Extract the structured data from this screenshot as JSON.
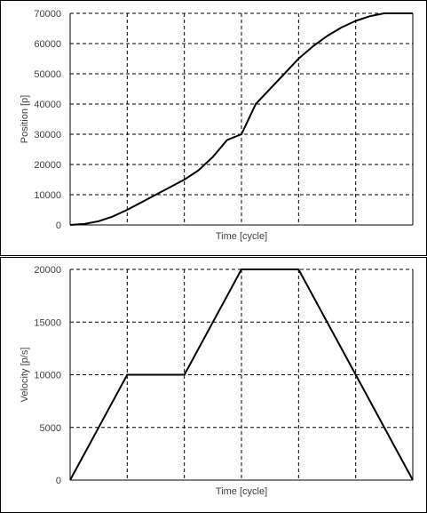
{
  "chart_data": [
    {
      "type": "line",
      "title": "",
      "xlabel": "Time [cycle]",
      "ylabel": "Position [p]",
      "ylim": [
        0,
        70000
      ],
      "yticks": [
        "0",
        "10000",
        "20000",
        "30000",
        "40000",
        "50000",
        "60000",
        "70000"
      ],
      "xlim": [
        0,
        6
      ],
      "grid": true,
      "series": [
        {
          "x": [
            0,
            0.25,
            0.5,
            0.75,
            1,
            1.25,
            1.5,
            1.75,
            2,
            2.25,
            2.5,
            2.75,
            3,
            3.25,
            3.5,
            3.75,
            4,
            4.25,
            4.5,
            4.75,
            5,
            5.25,
            5.5,
            5.75,
            6
          ],
          "y": [
            0,
            312,
            1250,
            2812,
            5000,
            7500,
            10000,
            12500,
            15000,
            18125,
            22500,
            28125,
            30000,
            40000,
            45000,
            50000,
            55000,
            59062,
            62500,
            65312,
            67500,
            69062,
            70000,
            70000,
            70000
          ]
        }
      ]
    },
    {
      "type": "line",
      "title": "",
      "xlabel": "Time [cycle]",
      "ylabel": "Velocity [p/s]",
      "ylim": [
        0,
        20000
      ],
      "yticks": [
        "0",
        "5000",
        "10000",
        "15000",
        "20000"
      ],
      "xlim": [
        0,
        6
      ],
      "grid": true,
      "series": [
        {
          "x": [
            0,
            1,
            2,
            3,
            4,
            5,
            6
          ],
          "y": [
            0,
            10000,
            10000,
            20000,
            20000,
            10000,
            0
          ]
        }
      ]
    }
  ],
  "colors": {
    "line": "#000000",
    "grid": "#000000",
    "text": "#404040"
  }
}
